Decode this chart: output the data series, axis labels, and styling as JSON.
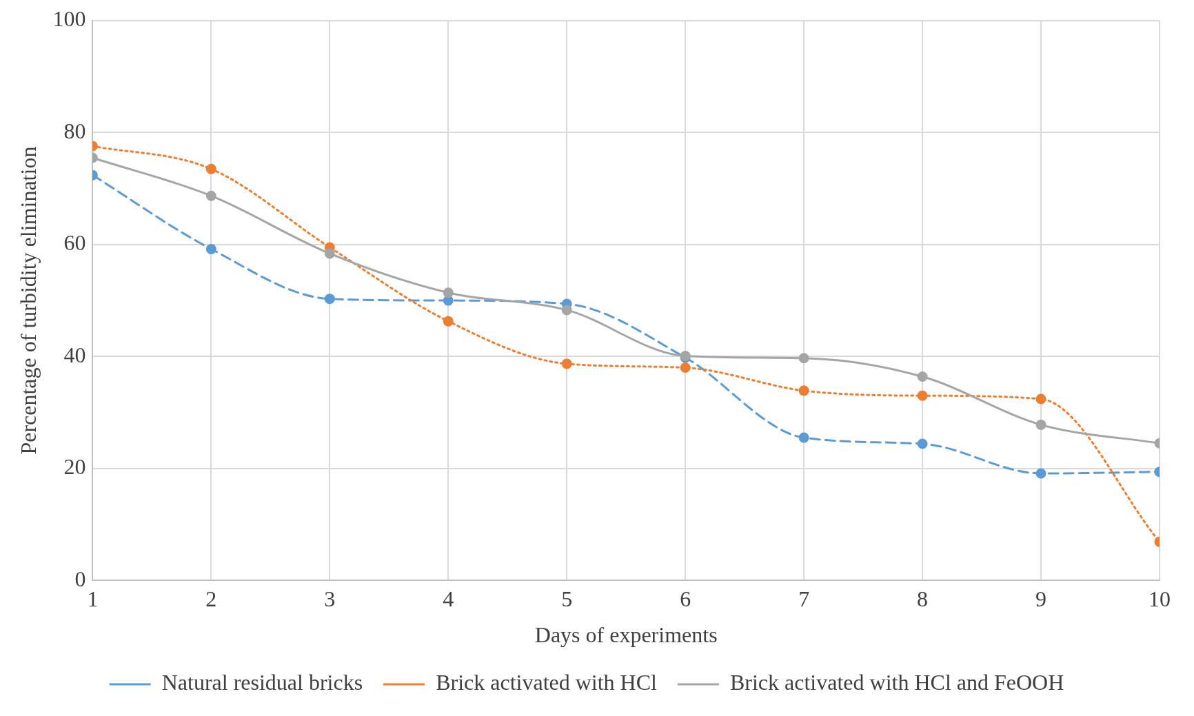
{
  "chart_data": {
    "type": "line",
    "xlabel": "Days of experiments",
    "ylabel": "Percentage of turbidity elimination",
    "x": [
      1,
      2,
      3,
      4,
      5,
      6,
      7,
      8,
      9,
      10
    ],
    "xlim": [
      1,
      10
    ],
    "xticks": [
      1,
      2,
      3,
      4,
      5,
      6,
      7,
      8,
      9,
      10
    ],
    "ylim": [
      0,
      100
    ],
    "yticks": [
      0,
      20,
      40,
      60,
      80,
      100
    ],
    "grid": true,
    "legend": "bottom",
    "marker": "circle",
    "series": [
      {
        "name": "Natural residual bricks",
        "color": "#5b9bd5",
        "line_style": "dashed",
        "values": [
          72.4,
          59.2,
          50.3,
          50.0,
          49.4,
          39.8,
          25.5,
          24.4,
          19.1,
          19.4
        ]
      },
      {
        "name": "Brick activated with HCl",
        "color": "#ed7d31",
        "line_style": "dotted",
        "values": [
          77.6,
          73.5,
          59.5,
          46.3,
          38.7,
          38.0,
          33.9,
          33.0,
          32.4,
          6.9
        ]
      },
      {
        "name": "Brick activated with HCl and FeOOH",
        "color": "#a5a5a5",
        "line_style": "solid",
        "values": [
          75.5,
          68.7,
          58.4,
          51.4,
          48.3,
          40.1,
          39.7,
          36.4,
          27.8,
          24.5
        ]
      }
    ]
  }
}
